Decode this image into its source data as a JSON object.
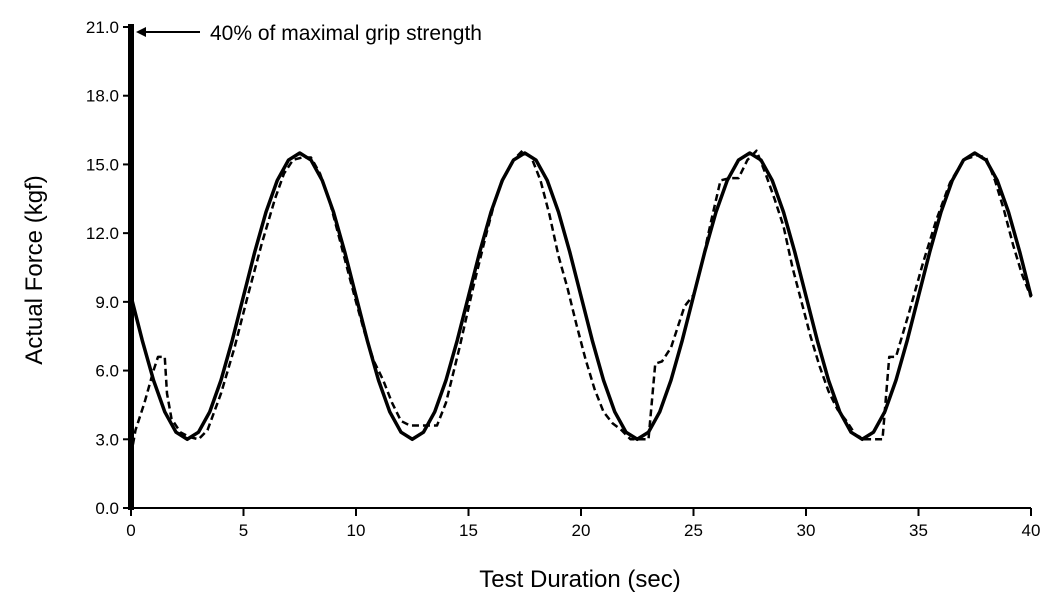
{
  "chart_data": {
    "type": "line",
    "xlabel": "Test Duration (sec)",
    "ylabel": "Actual Force (kgf)",
    "xlim": [
      0,
      40
    ],
    "ylim": [
      0,
      21
    ],
    "x_ticks": [
      "0",
      "5",
      "10",
      "15",
      "20",
      "25",
      "30",
      "35",
      "40"
    ],
    "y_ticks": [
      "0.0",
      "3.0",
      "6.0",
      "9.0",
      "12.0",
      "15.0",
      "18.0",
      "21.0"
    ],
    "grid": false,
    "legend": "none",
    "annotation": {
      "text": "40% of maximal grip strength",
      "arrow_to": {
        "x": 0,
        "y": 21.0
      }
    },
    "series": [
      {
        "style": "solid",
        "color": "#000000",
        "x": [
          0,
          0.5,
          1,
          1.5,
          2,
          2.5,
          3,
          3.5,
          4,
          4.5,
          5,
          5.5,
          6,
          6.5,
          7,
          7.5,
          8,
          8.5,
          9,
          9.5,
          10,
          10.5,
          11,
          11.5,
          12,
          12.5,
          13,
          13.5,
          14,
          14.5,
          15,
          15.5,
          16,
          16.5,
          17,
          17.5,
          18,
          18.5,
          19,
          19.5,
          20,
          20.5,
          21,
          21.5,
          22,
          22.5,
          23,
          23.5,
          24,
          24.5,
          25,
          25.5,
          26,
          26.5,
          27,
          27.5,
          28,
          28.5,
          29,
          29.5,
          30,
          30.5,
          31,
          31.5,
          32,
          32.5,
          33,
          33.5,
          34,
          34.5,
          35,
          35.5,
          36,
          36.5,
          37,
          37.5,
          38,
          38.5,
          39,
          39.5,
          40
        ],
        "y": [
          9.25,
          7.32,
          5.58,
          4.2,
          3.31,
          3.0,
          3.31,
          4.2,
          5.58,
          7.32,
          9.25,
          11.18,
          12.92,
          14.3,
          15.19,
          15.5,
          15.19,
          14.3,
          12.92,
          11.18,
          9.25,
          7.32,
          5.58,
          4.2,
          3.31,
          3.0,
          3.31,
          4.2,
          5.58,
          7.32,
          9.25,
          11.18,
          12.92,
          14.3,
          15.19,
          15.5,
          15.19,
          14.3,
          12.92,
          11.18,
          9.25,
          7.32,
          5.58,
          4.2,
          3.31,
          3.0,
          3.31,
          4.2,
          5.58,
          7.32,
          9.25,
          11.18,
          12.92,
          14.3,
          15.19,
          15.5,
          15.19,
          14.3,
          12.92,
          11.18,
          9.25,
          7.32,
          5.58,
          4.2,
          3.31,
          3.0,
          3.31,
          4.2,
          5.58,
          7.32,
          9.25,
          11.18,
          12.92,
          14.3,
          15.19,
          15.5,
          15.19,
          14.3,
          12.92,
          11.18,
          9.25
        ]
      },
      {
        "style": "dashed",
        "color": "#000000",
        "x": [
          0,
          0.2,
          0.6,
          1.0,
          1.2,
          1.5,
          1.6,
          1.8,
          2.2,
          2.6,
          3.0,
          3.4,
          4.0,
          4.6,
          5.2,
          5.8,
          6.4,
          6.8,
          7.2,
          7.6,
          8.0,
          8.4,
          8.8,
          9.2,
          9.6,
          10.0,
          10.4,
          10.8,
          11.2,
          11.6,
          12.0,
          12.4,
          12.8,
          13.2,
          13.6,
          14.0,
          14.6,
          15.2,
          15.8,
          16.2,
          16.6,
          17.0,
          17.4,
          17.8,
          18.2,
          18.6,
          19.0,
          19.4,
          19.8,
          20.2,
          20.6,
          21.0,
          21.4,
          21.8,
          22.2,
          22.6,
          23.0,
          23.3,
          23.6,
          24.0,
          24.6,
          25.0,
          25.4,
          25.8,
          26.2,
          26.6,
          27.0,
          27.4,
          27.8,
          28.2,
          28.6,
          29.0,
          29.4,
          29.8,
          30.2,
          30.6,
          31.0,
          31.4,
          31.8,
          32.2,
          32.6,
          33.0,
          33.4,
          33.7,
          34.0,
          34.6,
          35.2,
          35.8,
          36.4,
          37.0,
          37.6,
          38.0,
          38.4,
          38.8,
          39.2,
          39.6,
          40
        ],
        "y": [
          2.3,
          3.4,
          4.6,
          6.0,
          6.6,
          6.6,
          5.0,
          3.9,
          3.3,
          3.1,
          3.0,
          3.4,
          5.0,
          7.0,
          9.3,
          11.5,
          13.5,
          14.6,
          15.2,
          15.3,
          15.3,
          14.6,
          13.5,
          12.0,
          10.5,
          9.0,
          7.6,
          6.4,
          5.6,
          4.6,
          3.8,
          3.6,
          3.6,
          3.6,
          3.6,
          4.6,
          7.0,
          9.6,
          12.0,
          13.5,
          14.5,
          15.2,
          15.6,
          15.3,
          14.3,
          12.8,
          11.0,
          9.6,
          8.0,
          6.5,
          5.2,
          4.2,
          3.7,
          3.4,
          3.0,
          3.0,
          3.0,
          6.3,
          6.4,
          7.0,
          8.8,
          9.3,
          10.8,
          12.6,
          14.3,
          14.4,
          14.4,
          15.2,
          15.6,
          14.6,
          13.5,
          12.3,
          10.5,
          9.0,
          7.5,
          6.2,
          5.1,
          4.3,
          3.8,
          3.2,
          3.0,
          3.0,
          3.0,
          6.6,
          6.6,
          8.6,
          10.7,
          12.6,
          14.2,
          15.2,
          15.4,
          15.3,
          14.3,
          13.0,
          11.5,
          10.2,
          9.2
        ]
      }
    ]
  }
}
